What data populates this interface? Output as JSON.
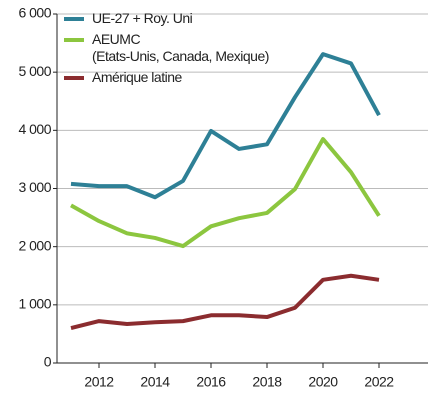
{
  "chart_data": {
    "type": "line",
    "x": [
      2011,
      2012,
      2013,
      2014,
      2015,
      2016,
      2017,
      2018,
      2019,
      2020,
      2021,
      2022
    ],
    "series": [
      {
        "name": "UE-27 + Roy. Uni",
        "color": "#2e8096",
        "values": [
          3080,
          3040,
          3040,
          2850,
          3130,
          3990,
          3680,
          3760,
          4570,
          5310,
          5150,
          4260
        ]
      },
      {
        "name": "AEUMC\n(Etats-Unis, Canada, Mexique)",
        "color": "#8cc63f",
        "values": [
          2710,
          2440,
          2230,
          2150,
          2010,
          2350,
          2490,
          2580,
          2990,
          3850,
          3280,
          2530
        ]
      },
      {
        "name": "Amérique latine",
        "color": "#8b2c2f",
        "values": [
          600,
          720,
          670,
          700,
          720,
          820,
          820,
          790,
          950,
          1430,
          1500,
          1430
        ]
      }
    ],
    "xlim": [
      2010.5,
      2023.75
    ],
    "xticks": [
      2012,
      2014,
      2016,
      2018,
      2020,
      2022
    ],
    "ylim": [
      0,
      6000
    ],
    "yticks": [
      0,
      {
        "value": 1000,
        "label": "1 000"
      },
      {
        "value": 2000,
        "label": "2 000"
      },
      {
        "value": 3000,
        "label": "3 000"
      },
      {
        "value": 4000,
        "label": "4 000"
      },
      {
        "value": 5000,
        "label": "5 000"
      },
      {
        "value": 6000,
        "label": "6 000"
      }
    ],
    "grid": true,
    "legend": "upper left"
  }
}
